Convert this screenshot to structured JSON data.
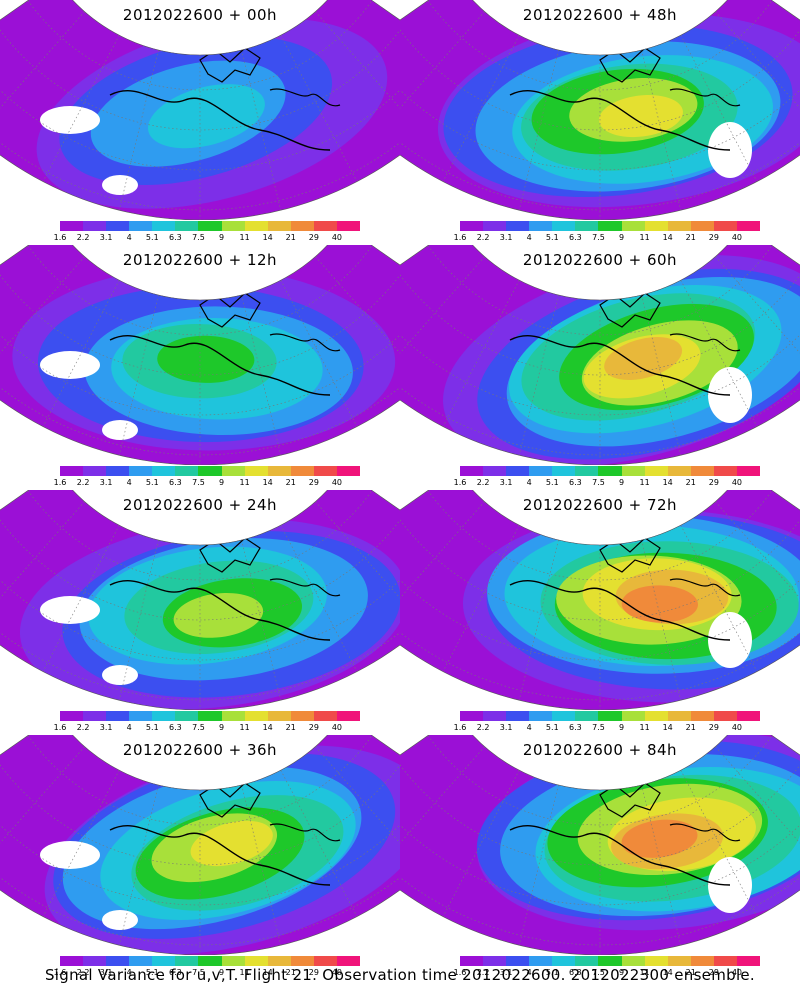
{
  "footer": {
    "caption": "Signal Variance for u,v,T. Flight 21. Observation time 2012022600. 2012022300 ensemble."
  },
  "colorbar": {
    "labels": [
      "1.6",
      "2.2",
      "3.1",
      "4",
      "5.1",
      "6.3",
      "7.5",
      "9",
      "11",
      "14",
      "21",
      "29",
      "40"
    ],
    "colors": [
      "#9b10d6",
      "#7d2fe8",
      "#3c4ff0",
      "#2f9cf0",
      "#1fc4dc",
      "#22c9a0",
      "#1ec82a",
      "#a8e03a",
      "#e4e030",
      "#e8b83a",
      "#f08a3a",
      "#f04a4a",
      "#f0147a"
    ]
  },
  "panels": [
    {
      "title": "2012022600 + 00h",
      "col": 0,
      "row": 0,
      "intensity": 0.2,
      "hotspot": [
        200,
        115
      ]
    },
    {
      "title": "2012022600 + 48h",
      "col": 1,
      "row": 0,
      "intensity": 0.7,
      "hotspot": [
        230,
        115
      ]
    },
    {
      "title": "2012022600 + 12h",
      "col": 0,
      "row": 1,
      "intensity": 0.45,
      "hotspot": [
        210,
        120
      ]
    },
    {
      "title": "2012022600 + 60h",
      "col": 1,
      "row": 1,
      "intensity": 0.78,
      "hotspot": [
        250,
        115
      ]
    },
    {
      "title": "2012022600 + 24h",
      "col": 0,
      "row": 2,
      "intensity": 0.58,
      "hotspot": [
        220,
        120
      ]
    },
    {
      "title": "2012022600 + 72h",
      "col": 1,
      "row": 2,
      "intensity": 0.85,
      "hotspot": [
        260,
        110
      ]
    },
    {
      "title": "2012022600 + 36h",
      "col": 0,
      "row": 3,
      "intensity": 0.65,
      "hotspot": [
        225,
        115
      ]
    },
    {
      "title": "2012022600 + 84h",
      "col": 1,
      "row": 3,
      "intensity": 0.92,
      "hotspot": [
        270,
        100
      ]
    }
  ]
}
